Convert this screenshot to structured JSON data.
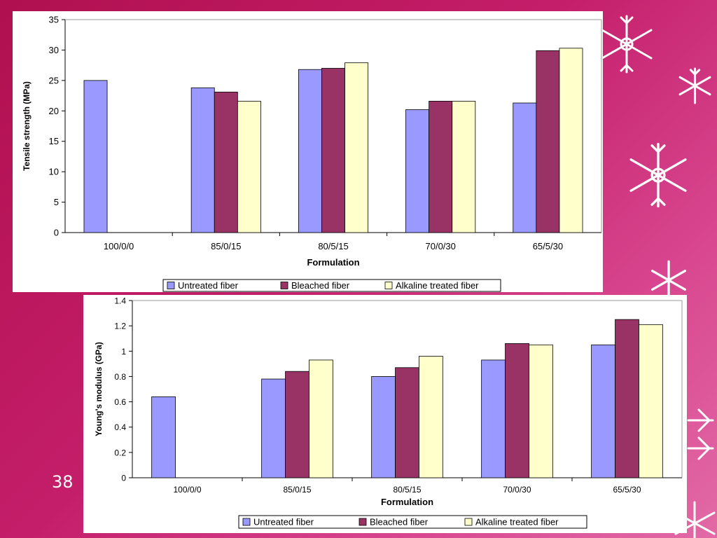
{
  "slide": {
    "number": "38"
  },
  "colors": {
    "untreated": "#9999ff",
    "bleached": "#993366",
    "alkaline": "#ffffcc",
    "background": "#c41e6a"
  },
  "chart_data": [
    {
      "type": "bar",
      "title": "",
      "xlabel": "Formulation",
      "ylabel": "Tensile strength (MPa)",
      "categories": [
        "100/0/0",
        "85/0/15",
        "80/5/15",
        "70/0/30",
        "65/5/30"
      ],
      "yticks": [
        "0",
        "5",
        "10",
        "15",
        "20",
        "25",
        "30",
        "35"
      ],
      "ylim": [
        0,
        35
      ],
      "grid": false,
      "legend_position": "bottom",
      "series": [
        {
          "name": "Untreated fiber",
          "color_key": "untreated",
          "values": [
            25.0,
            23.8,
            26.8,
            20.2,
            21.3
          ]
        },
        {
          "name": "Bleached fiber",
          "color_key": "bleached",
          "values": [
            null,
            23.1,
            27.0,
            21.6,
            29.9
          ]
        },
        {
          "name": "Alkaline treated fiber",
          "color_key": "alkaline",
          "values": [
            null,
            21.6,
            27.9,
            21.6,
            30.3
          ]
        }
      ]
    },
    {
      "type": "bar",
      "title": "",
      "xlabel": "Formulation",
      "ylabel": "Young's modulus (GPa)",
      "categories": [
        "100/0/0",
        "85/0/15",
        "80/5/15",
        "70/0/30",
        "65/5/30"
      ],
      "yticks": [
        "0",
        "0.2",
        "0.4",
        "0.6",
        "0.8",
        "1",
        "1.2",
        "1.4"
      ],
      "ylim": [
        0,
        1.4
      ],
      "grid": false,
      "legend_position": "bottom",
      "series": [
        {
          "name": "Untreated fiber",
          "color_key": "untreated",
          "values": [
            0.64,
            0.78,
            0.8,
            0.93,
            1.05
          ]
        },
        {
          "name": "Bleached fiber",
          "color_key": "bleached",
          "values": [
            null,
            0.84,
            0.87,
            1.06,
            1.25
          ]
        },
        {
          "name": "Alkaline treated fiber",
          "color_key": "alkaline",
          "values": [
            null,
            0.93,
            0.96,
            1.05,
            1.21
          ]
        }
      ]
    }
  ]
}
